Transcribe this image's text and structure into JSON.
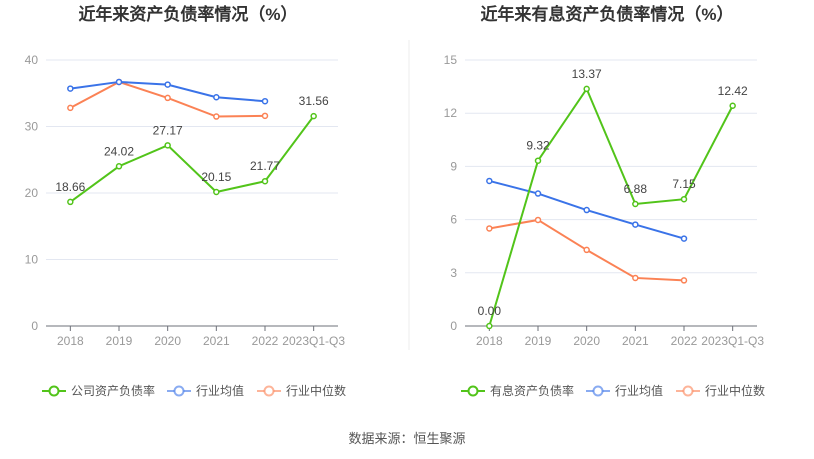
{
  "source": "数据来源：恒生聚源",
  "chart_data": [
    {
      "type": "line",
      "title": "近年来资产负债率情况（%）",
      "categories": [
        "2018",
        "2019",
        "2020",
        "2021",
        "2022",
        "2023Q1-Q3"
      ],
      "ylim": [
        0,
        40
      ],
      "yticks": [
        0,
        10,
        20,
        30,
        40
      ],
      "grid": true,
      "legend_position": "bottom",
      "series": [
        {
          "name": "公司资产负债率",
          "color": "#52c41a",
          "values": [
            18.66,
            24.02,
            27.17,
            20.15,
            21.77,
            31.56
          ],
          "labels": [
            "18.66",
            "24.02",
            "27.17",
            "20.15",
            "21.77",
            "31.56"
          ]
        },
        {
          "name": "行业均值",
          "color": "#3a73e8",
          "values": [
            35.7,
            36.7,
            36.3,
            34.4,
            33.8,
            null
          ]
        },
        {
          "name": "行业中位数",
          "color": "#fb8255",
          "values": [
            32.8,
            36.7,
            34.3,
            31.5,
            31.6,
            null
          ]
        }
      ]
    },
    {
      "type": "line",
      "title": "近年来有息资产负债率情况（%）",
      "categories": [
        "2018",
        "2019",
        "2020",
        "2021",
        "2022",
        "2023Q1-Q3"
      ],
      "ylim": [
        0,
        15
      ],
      "yticks": [
        0,
        3,
        6,
        9,
        12,
        15
      ],
      "grid": true,
      "legend_position": "bottom",
      "series": [
        {
          "name": "有息资产负债率",
          "color": "#52c41a",
          "values": [
            0.0,
            9.32,
            13.37,
            6.88,
            7.15,
            12.42
          ],
          "labels": [
            "0.00",
            "9.32",
            "13.37",
            "6.88",
            "7.15",
            "12.42"
          ]
        },
        {
          "name": "行业均值",
          "color": "#3a73e8",
          "values": [
            8.18,
            7.47,
            6.54,
            5.72,
            4.93,
            null
          ]
        },
        {
          "name": "行业中位数",
          "color": "#fb8255",
          "values": [
            5.5,
            5.98,
            4.29,
            2.71,
            2.57,
            null
          ]
        }
      ]
    }
  ]
}
